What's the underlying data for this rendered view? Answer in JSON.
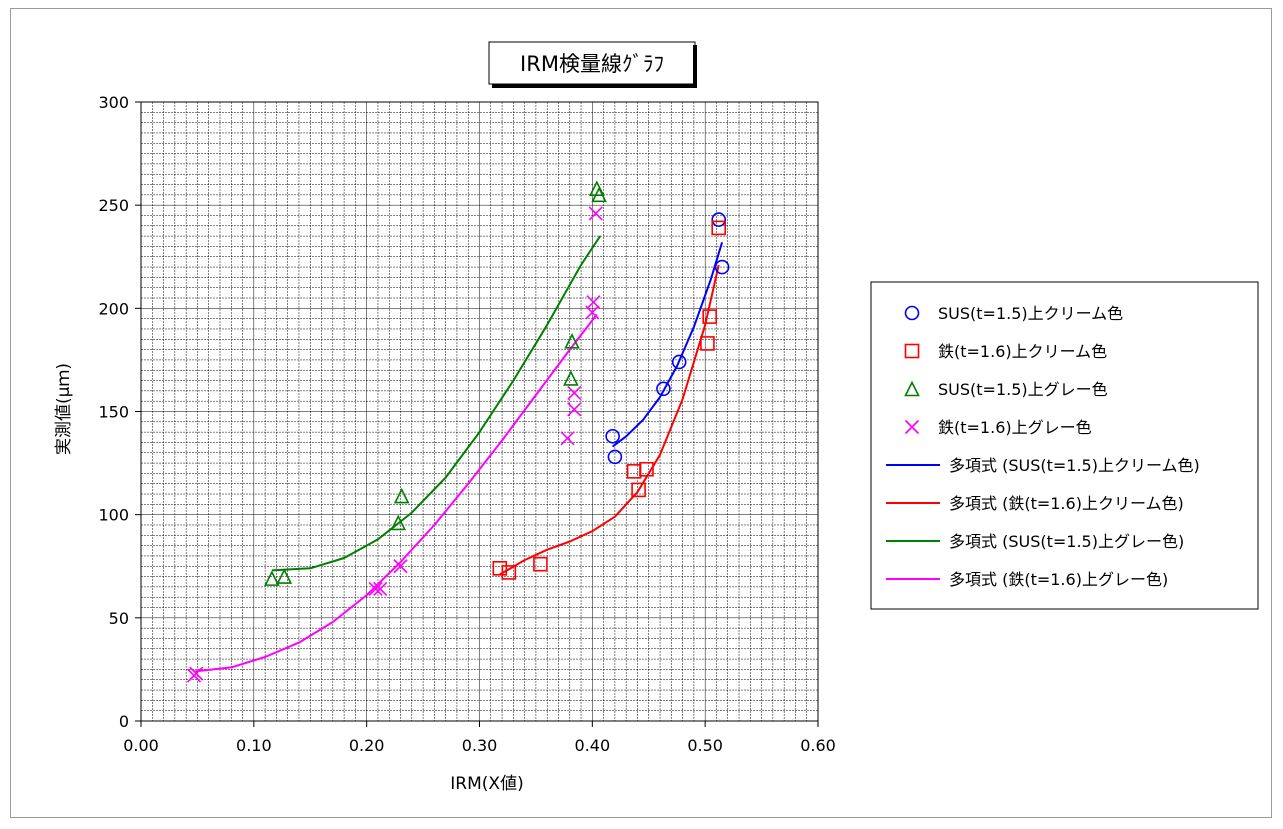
{
  "chart_data": {
    "type": "scatter",
    "title": "IRM検量線ｸﾞﾗﾌ",
    "xlabel": "IRM(X値)",
    "ylabel": "実測値(μｍ)",
    "xlim": [
      0,
      0.6
    ],
    "ylim": [
      0,
      300
    ],
    "x_ticks": [
      "0.00",
      "0.10",
      "0.20",
      "0.30",
      "0.40",
      "0.50",
      "0.60"
    ],
    "y_ticks": [
      "0",
      "50",
      "100",
      "150",
      "200",
      "250",
      "300"
    ],
    "grid": true,
    "legend_position": "right",
    "series": [
      {
        "name": "SUS(t=1.5)上クリーム色",
        "marker": "circle",
        "color": "#0000ff",
        "points": [
          [
            0.418,
            138
          ],
          [
            0.42,
            128
          ],
          [
            0.463,
            161
          ],
          [
            0.477,
            174
          ],
          [
            0.512,
            243
          ],
          [
            0.515,
            220
          ]
        ]
      },
      {
        "name": "鉄(t=1.6)上クリーム色",
        "marker": "square",
        "color": "#ff0000",
        "points": [
          [
            0.318,
            74
          ],
          [
            0.326,
            72
          ],
          [
            0.354,
            76
          ],
          [
            0.437,
            121
          ],
          [
            0.441,
            112
          ],
          [
            0.448,
            122
          ],
          [
            0.502,
            183
          ],
          [
            0.504,
            196
          ],
          [
            0.512,
            239
          ]
        ]
      },
      {
        "name": "SUS(t=1.5)上グレー色",
        "marker": "triangle",
        "color": "#008000",
        "points": [
          [
            0.116,
            69
          ],
          [
            0.127,
            70
          ],
          [
            0.228,
            96
          ],
          [
            0.231,
            109
          ],
          [
            0.381,
            166
          ],
          [
            0.382,
            184
          ],
          [
            0.404,
            258
          ],
          [
            0.406,
            255
          ]
        ]
      },
      {
        "name": "鉄(t=1.6)上グレー色",
        "marker": "x",
        "color": "#ff00ff",
        "points": [
          [
            0.047,
            22
          ],
          [
            0.049,
            23
          ],
          [
            0.208,
            64
          ],
          [
            0.212,
            64
          ],
          [
            0.23,
            75
          ],
          [
            0.378,
            137
          ],
          [
            0.384,
            159
          ],
          [
            0.384,
            151
          ],
          [
            0.401,
            203
          ],
          [
            0.4,
            198
          ],
          [
            0.403,
            246
          ]
        ]
      }
    ],
    "trendlines": [
      {
        "name": "多項式 (SUS(t=1.5)上クリーム色)",
        "color": "#0000ff",
        "points": [
          [
            0.418,
            133
          ],
          [
            0.43,
            138
          ],
          [
            0.445,
            146
          ],
          [
            0.46,
            157
          ],
          [
            0.475,
            172
          ],
          [
            0.49,
            191
          ],
          [
            0.505,
            214
          ],
          [
            0.515,
            232
          ]
        ]
      },
      {
        "name": "多項式 (鉄(t=1.6)上クリーム色)",
        "color": "#ff0000",
        "points": [
          [
            0.318,
            71
          ],
          [
            0.34,
            78
          ],
          [
            0.36,
            83
          ],
          [
            0.38,
            87
          ],
          [
            0.4,
            92
          ],
          [
            0.42,
            99
          ],
          [
            0.44,
            111
          ],
          [
            0.46,
            129
          ],
          [
            0.48,
            156
          ],
          [
            0.5,
            192
          ],
          [
            0.512,
            221
          ]
        ]
      },
      {
        "name": "多項式 (SUS(t=1.5)上グレー色)",
        "color": "#008000",
        "points": [
          [
            0.116,
            73
          ],
          [
            0.15,
            74
          ],
          [
            0.18,
            79
          ],
          [
            0.21,
            88
          ],
          [
            0.24,
            101
          ],
          [
            0.27,
            118
          ],
          [
            0.3,
            140
          ],
          [
            0.33,
            165
          ],
          [
            0.36,
            192
          ],
          [
            0.39,
            221
          ],
          [
            0.407,
            235
          ]
        ]
      },
      {
        "name": "多項式 (鉄(t=1.6)上グレー色)",
        "color": "#ff00ff",
        "points": [
          [
            0.047,
            24
          ],
          [
            0.08,
            26
          ],
          [
            0.11,
            31
          ],
          [
            0.14,
            38
          ],
          [
            0.17,
            48
          ],
          [
            0.2,
            61
          ],
          [
            0.23,
            77
          ],
          [
            0.26,
            95
          ],
          [
            0.29,
            115
          ],
          [
            0.32,
            136
          ],
          [
            0.35,
            158
          ],
          [
            0.38,
            180
          ],
          [
            0.404,
            197
          ]
        ]
      }
    ]
  }
}
